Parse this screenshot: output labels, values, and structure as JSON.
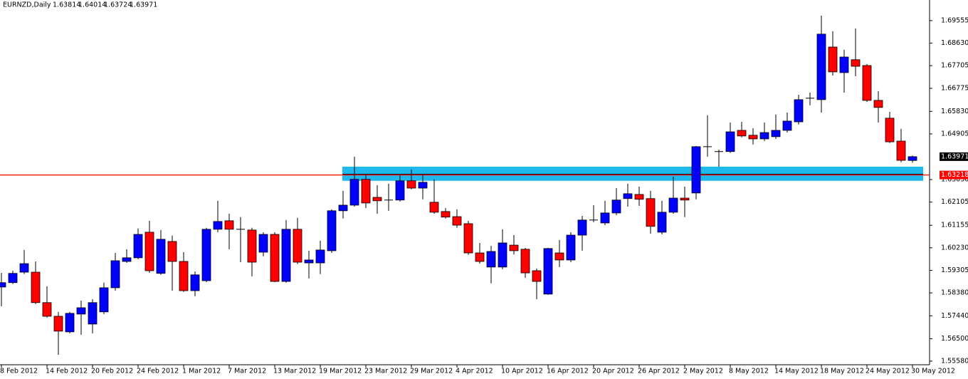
{
  "chart_data": {
    "type": "candlestick",
    "title": "EURNZD,Daily",
    "categories": [
      "8 Feb 2012",
      null,
      null,
      null,
      "14 Feb 2012",
      null,
      null,
      null,
      "20 Feb 2012",
      null,
      null,
      null,
      "24 Feb 2012",
      null,
      null,
      null,
      "1 Mar 2012",
      null,
      null,
      null,
      "7 Mar 2012",
      null,
      null,
      null,
      "13 Mar 2012",
      null,
      null,
      null,
      "19 Mar 2012",
      null,
      null,
      null,
      "23 Mar 2012",
      null,
      null,
      null,
      "29 Mar 2012",
      null,
      null,
      null,
      "4 Apr 2012",
      null,
      null,
      null,
      "10 Apr 2012",
      null,
      null,
      null,
      "16 Apr 2012",
      null,
      null,
      null,
      "20 Apr 2012",
      null,
      null,
      null,
      "26 Apr 2012",
      null,
      null,
      null,
      "2 May 2012",
      null,
      null,
      null,
      "8 May 2012",
      null,
      null,
      null,
      "14 May 2012",
      null,
      null,
      null,
      "18 May 2012",
      null,
      null,
      null,
      "24 May 2012",
      null,
      null,
      null,
      "30 May 2012"
    ],
    "open": [
      1.5862,
      1.588,
      1.5923,
      1.5923,
      1.5798,
      1.5742,
      1.5678,
      1.5751,
      1.571,
      1.576,
      1.5859,
      1.5967,
      1.5982,
      1.6087,
      1.5918,
      1.6049,
      1.5967,
      1.5847,
      1.5888,
      1.6099,
      1.6134,
      1.6099,
      1.6096,
      1.6005,
      1.6078,
      1.5885,
      1.6099,
      1.5961,
      1.5961,
      1.6011,
      1.6175,
      1.6198,
      1.6304,
      1.623,
      1.6219,
      1.6219,
      1.6298,
      1.6268,
      1.621,
      1.6172,
      1.6151,
      1.6122,
      1.6002,
      1.5944,
      1.5944,
      1.6034,
      1.6017,
      1.5929,
      1.5833,
      1.6002,
      1.5973,
      1.6075,
      1.6137,
      1.6125,
      1.6166,
      1.6225,
      1.6242,
      1.6225,
      1.6087,
      1.6169,
      1.6227,
      1.6248,
      1.6438,
      1.6418,
      1.6418,
      1.6505,
      1.6485,
      1.647,
      1.6479,
      1.6505,
      1.654,
      1.6637,
      1.6631,
      1.6847,
      1.6742,
      1.6795,
      1.6771,
      1.6628,
      1.6555,
      1.6461,
      1.63814
    ],
    "high": [
      1.592,
      1.5929,
      1.6014,
      1.5967,
      1.5865,
      1.576,
      1.576,
      1.5806,
      1.5812,
      1.588,
      1.6002,
      1.6017,
      1.6102,
      1.6134,
      1.6096,
      1.6073,
      1.6005,
      1.5926,
      1.6105,
      1.6216,
      1.6163,
      1.6149,
      1.6105,
      1.6087,
      1.6087,
      1.6137,
      1.6146,
      1.6011,
      1.6052,
      1.6181,
      1.6257,
      1.6397,
      1.6324,
      1.628,
      1.6286,
      1.6321,
      1.6344,
      1.6324,
      1.6304,
      1.6186,
      1.6181,
      1.6134,
      1.6043,
      1.6031,
      1.6099,
      1.6075,
      1.6023,
      1.5938,
      1.6023,
      1.6055,
      1.6087,
      1.6154,
      1.6198,
      1.6216,
      1.6268,
      1.6286,
      1.6274,
      1.6257,
      1.6216,
      1.6315,
      1.6274,
      1.6441,
      1.6567,
      1.6426,
      1.6537,
      1.654,
      1.6514,
      1.6537,
      1.657,
      1.6578,
      1.6651,
      1.666,
      1.6976,
      1.6912,
      1.6836,
      1.6923,
      1.6777,
      1.6666,
      1.6581,
      1.6511,
      1.64014
    ],
    "low": [
      1.5783,
      1.5874,
      1.5915,
      1.5792,
      1.5736,
      1.5584,
      1.5672,
      1.5666,
      1.5672,
      1.5751,
      1.5847,
      1.5961,
      1.5976,
      1.592,
      1.5912,
      1.5847,
      1.5842,
      1.5824,
      1.5882,
      1.6087,
      1.6017,
      1.5964,
      1.5906,
      1.5988,
      1.5882,
      1.588,
      1.5956,
      1.5897,
      1.5915,
      1.6002,
      1.6143,
      1.6192,
      1.6186,
      1.6163,
      1.6175,
      1.6213,
      1.6263,
      1.6222,
      1.6163,
      1.6143,
      1.6105,
      1.5994,
      1.5958,
      1.5877,
      1.5935,
      1.5996,
      1.59,
      1.5812,
      1.583,
      1.5944,
      1.5964,
      1.6011,
      1.6128,
      1.6116,
      1.6157,
      1.6192,
      1.6195,
      1.6081,
      1.6078,
      1.6163,
      1.6149,
      1.6222,
      1.6397,
      1.6356,
      1.6412,
      1.6476,
      1.6447,
      1.6461,
      1.647,
      1.6496,
      1.6529,
      1.6608,
      1.6578,
      1.673,
      1.666,
      1.6727,
      1.6622,
      1.6537,
      1.6453,
      1.6374,
      1.63724
    ],
    "close": [
      1.588,
      1.5918,
      1.5958,
      1.5798,
      1.5742,
      1.5681,
      1.5754,
      1.5777,
      1.5798,
      1.5859,
      1.597,
      1.5982,
      1.6078,
      1.5929,
      1.6058,
      1.5967,
      1.5847,
      1.5912,
      1.6099,
      1.6131,
      1.6099,
      1.6099,
      1.5964,
      1.6078,
      1.5885,
      1.6099,
      1.5964,
      1.5973,
      1.6014,
      1.6175,
      1.6198,
      1.6304,
      1.6207,
      1.6216,
      1.6219,
      1.6298,
      1.6268,
      1.6292,
      1.6169,
      1.6149,
      1.6116,
      1.6002,
      1.5967,
      1.6008,
      1.6043,
      1.6011,
      1.592,
      1.5885,
      1.602,
      1.5973,
      1.6075,
      1.6137,
      1.6137,
      1.6166,
      1.6219,
      1.6245,
      1.6222,
      1.6111,
      1.6169,
      1.6227,
      1.6219,
      1.6438,
      1.6438,
      1.6418,
      1.6499,
      1.6482,
      1.647,
      1.6496,
      1.6505,
      1.6543,
      1.6631,
      1.6637,
      1.69,
      1.6745,
      1.6806,
      1.6768,
      1.6628,
      1.6599,
      1.6458,
      1.6382,
      1.63971
    ],
    "up_color": "#0000ff",
    "down_color": "#ff0000",
    "doji_color": "#000000",
    "ylim": [
      1.5543,
      1.704
    ],
    "yticks": [
      1.69555,
      {
        "value": 1.6863,
        "label": "1.68630"
      },
      1.67705,
      1.66775,
      {
        "value": 1.6583,
        "label": "1.65830"
      },
      1.64905,
      {
        "value": 1.6303,
        "label": "1.63030"
      },
      1.62105,
      1.61155,
      {
        "value": 1.6023,
        "label": "1.60230"
      },
      1.59305,
      {
        "value": 1.5838,
        "label": "1.58380"
      },
      {
        "value": 1.5744,
        "label": "1.57440"
      },
      {
        "value": 1.565,
        "label": "1.56500"
      },
      {
        "value": 1.5558,
        "label": "1.55580"
      }
    ],
    "hline": {
      "value": 1.63218,
      "color": "#ff0000"
    },
    "zone": {
      "high": 1.6356,
      "low": 1.6298,
      "line": 1.6324,
      "color": "#1fb8ec"
    }
  }
}
